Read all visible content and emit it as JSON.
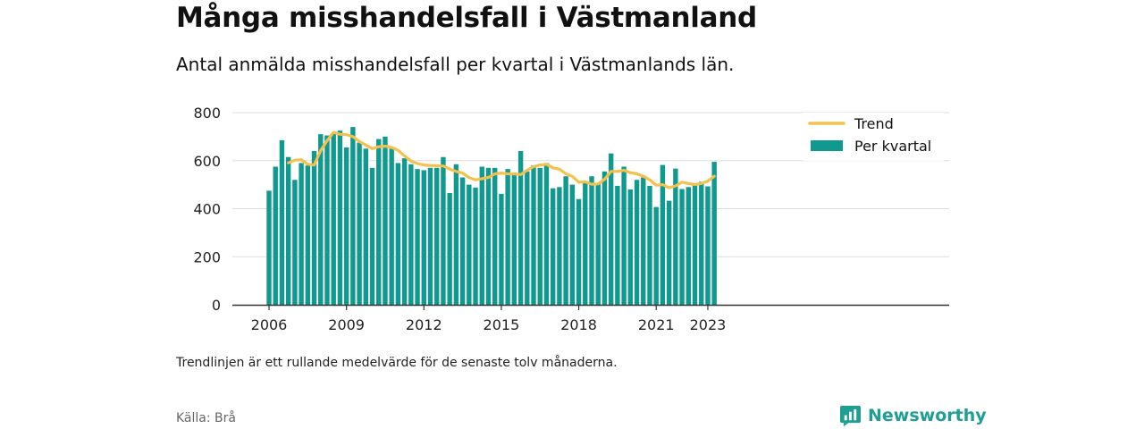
{
  "title": "Många misshandelsfall i Västmanland",
  "subtitle": "Antal anmälda misshandelsfall per kvartal i Västmanlands län.",
  "note": "Trendlinjen är ett rullande medelvärde för de senaste tolv månaderna.",
  "source": "Källa: Brå",
  "brand": "Newsworthy",
  "colors": {
    "bars": "#10998f",
    "trend": "#f2c14e",
    "grid": "#dddddd",
    "axis": "#333333",
    "brand": "#1f9e94"
  },
  "chart_data": {
    "type": "bar",
    "xlabel": "",
    "ylabel": "",
    "ylim": [
      0,
      800
    ],
    "y_ticks": [
      "0",
      "200",
      "400",
      "600",
      "800"
    ],
    "x_ticks": [
      "2006",
      "2009",
      "2012",
      "2015",
      "2018",
      "2021",
      "2023"
    ],
    "grid": true,
    "legend_position": "top-right",
    "categories": [
      "2006 Q1",
      "2006 Q2",
      "2006 Q3",
      "2006 Q4",
      "2007 Q1",
      "2007 Q2",
      "2007 Q3",
      "2007 Q4",
      "2008 Q1",
      "2008 Q2",
      "2008 Q3",
      "2008 Q4",
      "2009 Q1",
      "2009 Q2",
      "2009 Q3",
      "2009 Q4",
      "2010 Q1",
      "2010 Q2",
      "2010 Q3",
      "2010 Q4",
      "2011 Q1",
      "2011 Q2",
      "2011 Q3",
      "2011 Q4",
      "2012 Q1",
      "2012 Q2",
      "2012 Q3",
      "2012 Q4",
      "2013 Q1",
      "2013 Q2",
      "2013 Q3",
      "2013 Q4",
      "2014 Q1",
      "2014 Q2",
      "2014 Q3",
      "2014 Q4",
      "2015 Q1",
      "2015 Q2",
      "2015 Q3",
      "2015 Q4",
      "2016 Q1",
      "2016 Q2",
      "2016 Q3",
      "2016 Q4",
      "2017 Q1",
      "2017 Q2",
      "2017 Q3",
      "2017 Q4",
      "2018 Q1",
      "2018 Q2",
      "2018 Q3",
      "2018 Q4",
      "2019 Q1",
      "2019 Q2",
      "2019 Q3",
      "2019 Q4",
      "2020 Q1",
      "2020 Q2",
      "2020 Q3",
      "2020 Q4",
      "2021 Q1",
      "2021 Q2",
      "2021 Q3",
      "2021 Q4",
      "2022 Q1",
      "2022 Q2",
      "2022 Q3",
      "2022 Q4",
      "2023 Q1",
      "2023 Q2"
    ],
    "series": [
      {
        "name": "Per kvartal",
        "kind": "bar",
        "values": [
          475,
          575,
          685,
          615,
          520,
          590,
          580,
          640,
          710,
          705,
          715,
          725,
          655,
          740,
          675,
          650,
          570,
          690,
          700,
          650,
          590,
          610,
          585,
          565,
          560,
          570,
          570,
          615,
          465,
          585,
          530,
          500,
          488,
          575,
          570,
          570,
          462,
          565,
          550,
          640,
          555,
          580,
          570,
          590,
          485,
          490,
          535,
          500,
          440,
          515,
          535,
          505,
          555,
          630,
          495,
          575,
          480,
          520,
          530,
          495,
          407,
          582,
          433,
          567,
          482,
          490,
          500,
          512,
          493,
          595
        ]
      },
      {
        "name": "Trend",
        "kind": "line",
        "values": [
          null,
          null,
          null,
          591,
          602,
          604,
          585,
          582,
          642,
          683,
          718,
          710,
          708,
          700,
          680,
          665,
          650,
          658,
          660,
          655,
          643,
          620,
          598,
          588,
          582,
          580,
          579,
          578,
          565,
          555,
          548,
          530,
          520,
          525,
          530,
          545,
          548,
          545,
          545,
          542,
          560,
          575,
          582,
          585,
          570,
          565,
          545,
          535,
          510,
          512,
          502,
          503,
          522,
          555,
          555,
          560,
          550,
          545,
          535,
          520,
          498,
          500,
          487,
          495,
          510,
          505,
          500,
          505,
          515,
          535
        ]
      }
    ]
  }
}
